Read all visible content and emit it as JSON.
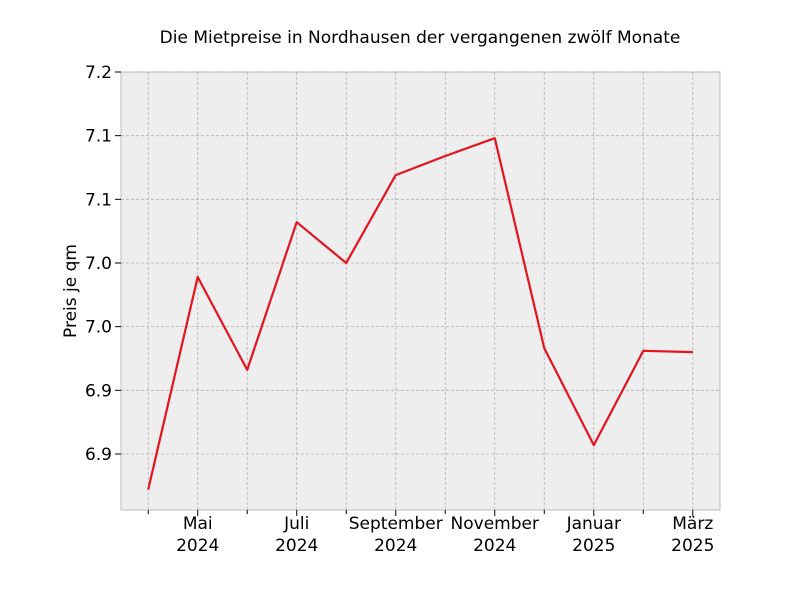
{
  "chart_data": {
    "type": "line",
    "title": "Die Mietpreise in Nordhausen der vergangenen zwölf Monate",
    "xlabel": "",
    "ylabel": "Preis je qm",
    "x": [
      "2024-04",
      "2024-05",
      "2024-06",
      "2024-07",
      "2024-08",
      "2024-09",
      "2024-10",
      "2024-11",
      "2024-12",
      "2025-01",
      "2025-02",
      "2025-03"
    ],
    "x_tick_labels": [
      {
        "month": "Mai",
        "year": "2024",
        "x": "2024-05"
      },
      {
        "month": "Juli",
        "year": "2024",
        "x": "2024-07"
      },
      {
        "month": "September",
        "year": "2024",
        "x": "2024-09"
      },
      {
        "month": "November",
        "year": "2024",
        "x": "2024-11"
      },
      {
        "month": "Januar",
        "year": "2025",
        "x": "2025-01"
      },
      {
        "month": "März",
        "year": "2025",
        "x": "2025-03"
      }
    ],
    "y_tick_labels": [
      "6.9",
      "6.9",
      "7.0",
      "7.0",
      "7.1",
      "7.1",
      "7.2"
    ],
    "y_tick_values": [
      6.9,
      6.95,
      7.0,
      7.05,
      7.1,
      7.15,
      7.2
    ],
    "ylim": [
      6.856,
      7.2
    ],
    "series": [
      {
        "values": [
          6.872,
          7.039,
          6.966,
          7.082,
          7.05,
          7.119,
          7.134,
          7.148,
          6.983,
          6.907,
          6.981,
          6.98
        ],
        "color": "#e3141e"
      }
    ],
    "grid": true,
    "background_color": "#eeeeee"
  }
}
